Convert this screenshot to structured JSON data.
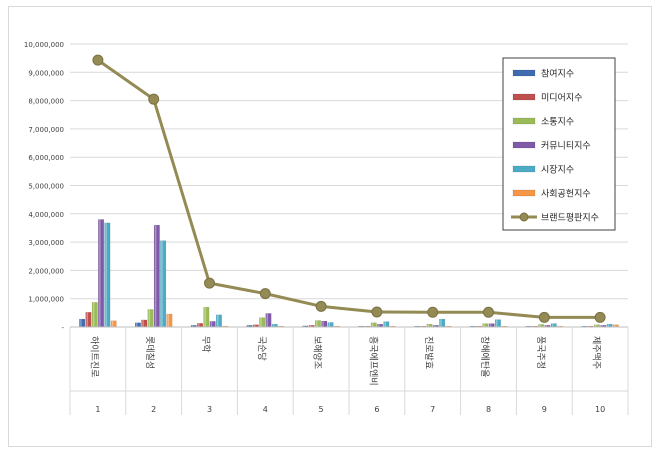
{
  "chart_data": {
    "type": "bar",
    "categories": [
      "1",
      "2",
      "3",
      "4",
      "5",
      "6",
      "7",
      "8",
      "9",
      "10"
    ],
    "category_names": [
      "하이트진로",
      "롯데칠성",
      "무학",
      "국순당",
      "보해양조",
      "흥국에프엔비",
      "진로발효",
      "창해에탄올",
      "풍국주정",
      "제주맥주"
    ],
    "ylim": [
      0,
      10000000
    ],
    "ytick_labels": [
      "-",
      "1,000,000",
      "2,000,000",
      "3,000,000",
      "4,000,000",
      "5,000,000",
      "6,000,000",
      "7,000,000",
      "8,000,000",
      "9,000,000",
      "10,000,000"
    ],
    "grid": true,
    "legend_position": "top-right",
    "series": [
      {
        "name": "참여지수",
        "kind": "bar",
        "color": "#3f6bb1",
        "values": [
          280000,
          150000,
          60000,
          60000,
          40000,
          30000,
          30000,
          30000,
          30000,
          30000
        ]
      },
      {
        "name": "미디어지수",
        "kind": "bar",
        "color": "#c0504d",
        "values": [
          520000,
          250000,
          130000,
          80000,
          60000,
          30000,
          30000,
          30000,
          30000,
          30000
        ]
      },
      {
        "name": "소통지수",
        "kind": "bar",
        "color": "#9bbb59",
        "values": [
          870000,
          620000,
          700000,
          330000,
          230000,
          150000,
          100000,
          120000,
          90000,
          80000
        ]
      },
      {
        "name": "커뮤니티지수",
        "kind": "bar",
        "color": "#7f5aa8",
        "values": [
          3800000,
          3600000,
          200000,
          480000,
          210000,
          100000,
          60000,
          120000,
          60000,
          60000
        ]
      },
      {
        "name": "시장지수",
        "kind": "bar",
        "color": "#4bacc6",
        "values": [
          3680000,
          3050000,
          430000,
          100000,
          160000,
          190000,
          280000,
          260000,
          120000,
          100000
        ]
      },
      {
        "name": "사회공헌지수",
        "kind": "bar",
        "color": "#f79646",
        "values": [
          220000,
          460000,
          30000,
          30000,
          30000,
          30000,
          30000,
          30000,
          30000,
          80000
        ]
      },
      {
        "name": "브랜드평판지수",
        "kind": "line",
        "color": "#948a54",
        "values": [
          9430000,
          8050000,
          1550000,
          1180000,
          730000,
          530000,
          520000,
          520000,
          340000,
          340000
        ]
      }
    ]
  }
}
